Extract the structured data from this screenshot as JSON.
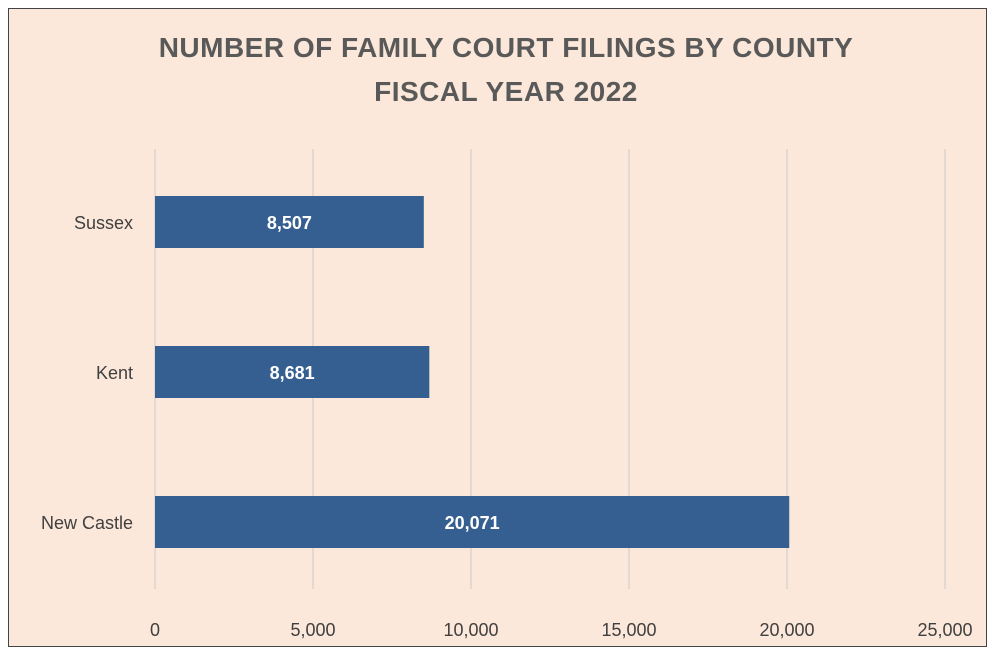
{
  "chart_data": {
    "type": "bar",
    "orientation": "horizontal",
    "title": "NUMBER OF FAMILY COURT FILINGS BY COUNTY",
    "subtitle": "FISCAL YEAR 2022",
    "categories": [
      "Sussex",
      "Kent",
      "New Castle"
    ],
    "values": [
      8507,
      8681,
      20071
    ],
    "data_labels": [
      "8,507",
      "8,681",
      "20,071"
    ],
    "xlim": [
      0,
      25000
    ],
    "x_ticks": [
      0,
      5000,
      10000,
      15000,
      20000,
      25000
    ],
    "x_tick_labels": [
      "0",
      "5,000",
      "10,000",
      "15,000",
      "20,000",
      "25,000"
    ],
    "xlabel": "",
    "ylabel": "",
    "grid": "vertical",
    "legend": "none",
    "bar_color": "#365f91",
    "background_color": "#fce8da"
  }
}
